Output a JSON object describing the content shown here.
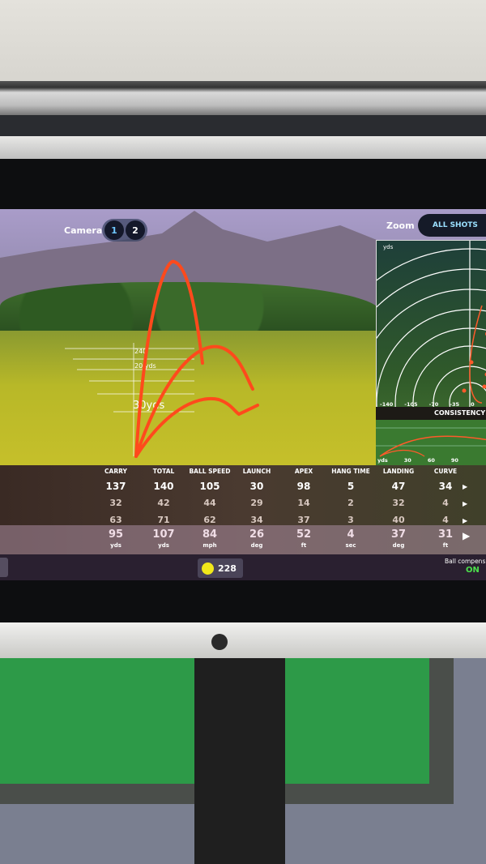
{
  "camera": {
    "label": "Camera",
    "options": [
      "1",
      "2"
    ],
    "active": "1"
  },
  "zoom": {
    "label": "Zoom",
    "button": "ALL SHOTS"
  },
  "scene": {
    "distance_labels": [
      "240",
      "20 yds",
      "30yds"
    ]
  },
  "dispersion": {
    "unit": "yds",
    "x_ticks": [
      "-140",
      "-105",
      "-70",
      "-35",
      "0"
    ],
    "title": "CONSISTENCY O"
  },
  "side_view": {
    "unit": "yds",
    "x_ticks": [
      "30",
      "60",
      "90"
    ]
  },
  "colors": {
    "trace": "#ff4a1c",
    "on": "#4ce04c",
    "ball": "#f1e81a"
  },
  "table": {
    "headers": [
      "CARRY",
      "TOTAL",
      "BALL SPEED",
      "LAUNCH",
      "APEX",
      "HANG TIME",
      "LANDING",
      "CURVE"
    ],
    "rows": [
      [
        "137",
        "140",
        "105",
        "30",
        "98",
        "5",
        "47",
        "34"
      ],
      [
        "32",
        "42",
        "44",
        "29",
        "14",
        "2",
        "32",
        "4"
      ],
      [
        "63",
        "71",
        "62",
        "34",
        "37",
        "3",
        "40",
        "4"
      ]
    ],
    "average": [
      "95",
      "107",
      "84",
      "26",
      "52",
      "4",
      "37",
      "31"
    ],
    "units": [
      "yds",
      "yds",
      "mph",
      "deg",
      "ft",
      "sec",
      "deg",
      "ft"
    ]
  },
  "footer": {
    "ball_count": "228",
    "ball_comp_label": "Ball compens",
    "ball_comp_value": "ON"
  }
}
